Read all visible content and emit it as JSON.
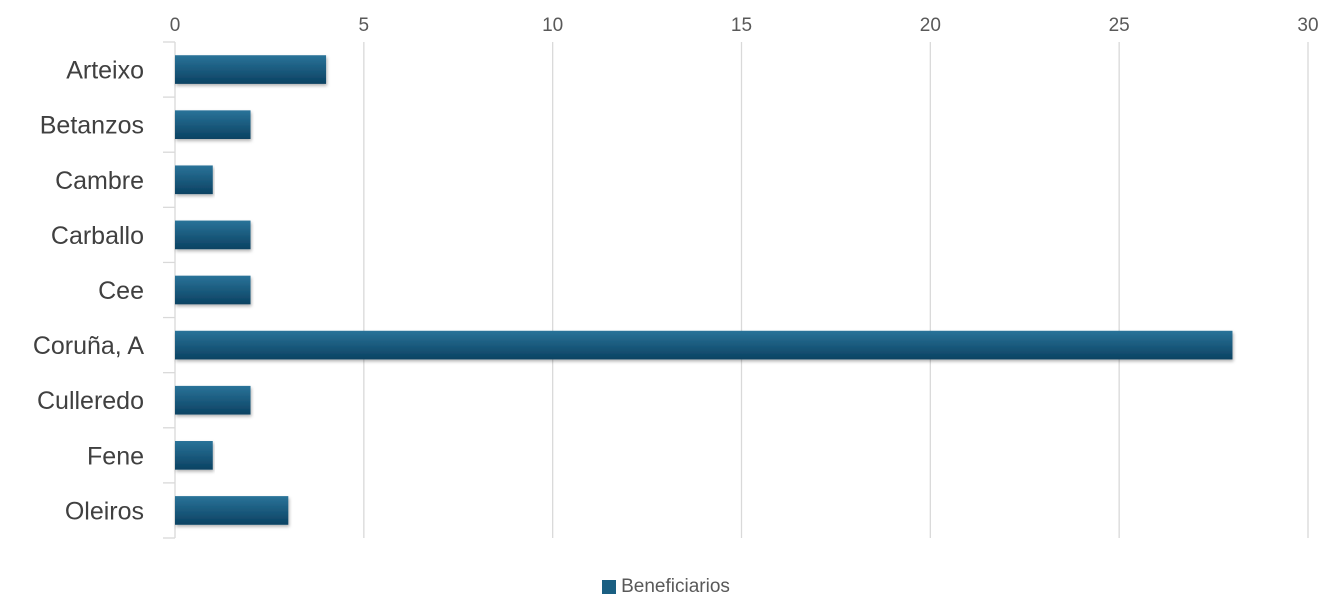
{
  "chart_data": {
    "type": "bar",
    "orientation": "horizontal",
    "categories": [
      "Arteixo",
      "Betanzos",
      "Cambre",
      "Carballo",
      "Cee",
      "Coruña, A",
      "Culleredo",
      "Fene",
      "Oleiros"
    ],
    "series": [
      {
        "name": "Beneficiarios",
        "values": [
          4,
          2,
          1,
          2,
          2,
          28,
          2,
          1,
          3
        ]
      }
    ],
    "x_ticks": [
      0,
      5,
      10,
      15,
      20,
      25,
      30
    ],
    "xlim": [
      0,
      30
    ],
    "x_axis_position": "top",
    "grid": true,
    "legend_position": "bottom",
    "colors": {
      "bar": "#1a5f82",
      "bar_dark": "#0e4563",
      "grid": "#d9d9d9",
      "axis": "#d9d9d9"
    }
  }
}
